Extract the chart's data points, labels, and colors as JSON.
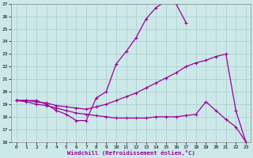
{
  "xlabel": "Windchill (Refroidissement éolien,°C)",
  "xlim": [
    -0.5,
    23.5
  ],
  "ylim": [
    16,
    27
  ],
  "xticks": [
    0,
    1,
    2,
    3,
    4,
    5,
    6,
    7,
    8,
    9,
    10,
    11,
    12,
    13,
    14,
    15,
    16,
    17,
    18,
    19,
    20,
    21,
    22,
    23
  ],
  "yticks": [
    16,
    17,
    18,
    19,
    20,
    21,
    22,
    23,
    24,
    25,
    26,
    27
  ],
  "bg_color": "#cce8e8",
  "line_color": "#990099",
  "grid_color": "#aacece",
  "line1_x": [
    0,
    1,
    2,
    3,
    4,
    5,
    6,
    7,
    8,
    9,
    10,
    11,
    12,
    13,
    14,
    15,
    16,
    17
  ],
  "line1_y": [
    19.3,
    19.3,
    19.3,
    19.0,
    18.5,
    18.2,
    17.7,
    17.7,
    19.5,
    20.0,
    22.2,
    23.2,
    24.3,
    25.8,
    26.7,
    27.2,
    27.0,
    25.5
  ],
  "line2_x": [
    0,
    1,
    2,
    3,
    4,
    5,
    6,
    7,
    8,
    9,
    10,
    11,
    12,
    13,
    14,
    15,
    16,
    17,
    18,
    19,
    20,
    21,
    22,
    23
  ],
  "line2_y": [
    19.3,
    19.3,
    19.2,
    19.1,
    18.9,
    18.8,
    18.7,
    18.6,
    18.8,
    19.0,
    19.3,
    19.6,
    19.9,
    20.3,
    20.7,
    21.1,
    21.5,
    22.0,
    22.3,
    22.5,
    22.8,
    23.0,
    18.5,
    16.0
  ],
  "line3_x": [
    0,
    1,
    2,
    3,
    4,
    5,
    6,
    7,
    8,
    9,
    10,
    11,
    12,
    13,
    14,
    15,
    16,
    17,
    18,
    19,
    20,
    21,
    22,
    23
  ],
  "line3_y": [
    19.3,
    19.2,
    19.0,
    18.9,
    18.7,
    18.5,
    18.3,
    18.2,
    18.1,
    18.0,
    17.9,
    17.9,
    17.9,
    17.9,
    18.0,
    18.0,
    18.0,
    18.1,
    18.2,
    19.2,
    18.5,
    17.8,
    17.2,
    16.0
  ]
}
